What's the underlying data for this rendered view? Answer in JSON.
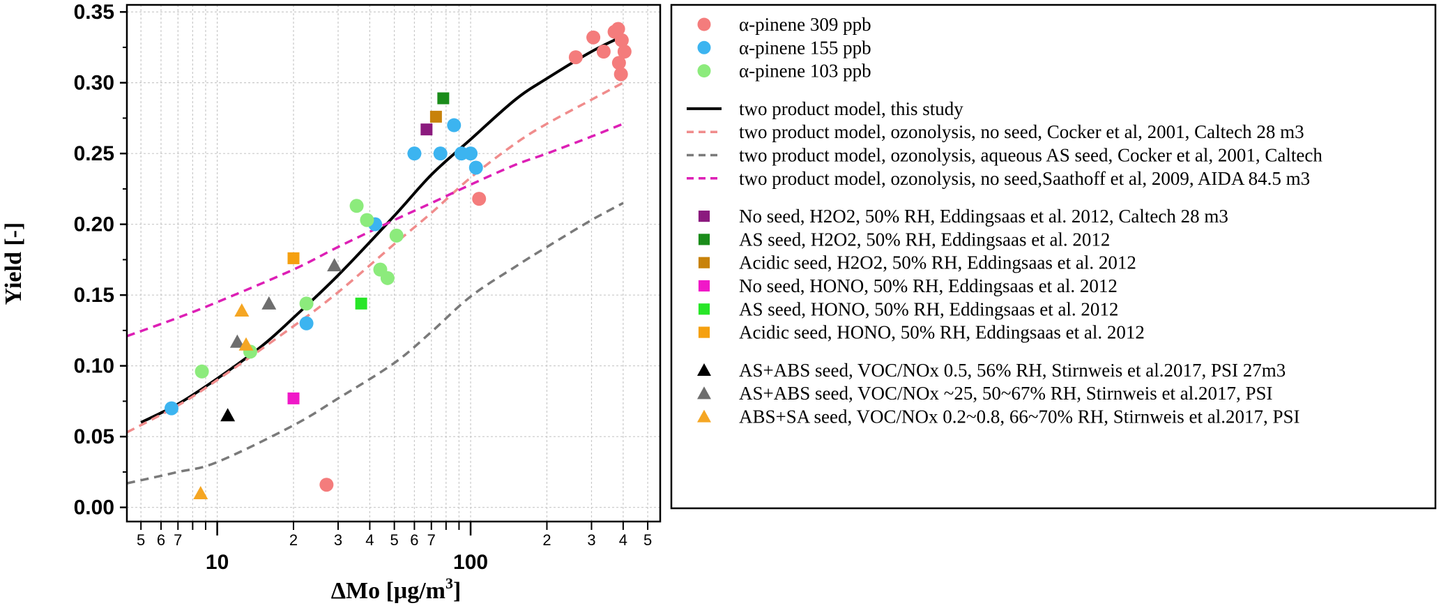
{
  "chart_data": {
    "type": "scatter",
    "x_scale": "log",
    "xlabel": "ΔMo [μg/m",
    "xlabel_superscript": "3",
    "xlabel_close": "]",
    "ylabel": "Yield [-]",
    "xlim": [
      4.4,
      560
    ],
    "ylim": [
      -0.01,
      0.355
    ],
    "grid": true,
    "legend_position": "right",
    "y_ticks": [
      "0.00",
      "0.05",
      "0.10",
      "0.15",
      "0.20",
      "0.25",
      "0.30",
      "0.35"
    ],
    "y_tick_values": [
      0.0,
      0.05,
      0.1,
      0.15,
      0.2,
      0.25,
      0.3,
      0.35
    ],
    "x_major_ticks": [
      {
        "value": 10,
        "label": "10"
      },
      {
        "value": 100,
        "label": "100"
      }
    ],
    "x_minor_ticks": [
      {
        "value": 5,
        "label": "5"
      },
      {
        "value": 6,
        "label": "6"
      },
      {
        "value": 7,
        "label": "7"
      },
      {
        "value": 20,
        "label": "2"
      },
      {
        "value": 30,
        "label": "3"
      },
      {
        "value": 40,
        "label": "4"
      },
      {
        "value": 50,
        "label": "5"
      },
      {
        "value": 60,
        "label": "6"
      },
      {
        "value": 70,
        "label": "7"
      },
      {
        "value": 200,
        "label": "2"
      },
      {
        "value": 300,
        "label": "3"
      },
      {
        "value": 400,
        "label": "4"
      },
      {
        "value": 500,
        "label": "5"
      }
    ],
    "scatter_series": [
      {
        "name": "α-pinene 309 ppb",
        "marker": "circle",
        "color": "#f47c7c",
        "points": [
          [
            108,
            0.218
          ],
          [
            27,
            0.016
          ],
          [
            260,
            0.318
          ],
          [
            305,
            0.332
          ],
          [
            335,
            0.322
          ],
          [
            370,
            0.336
          ],
          [
            382,
            0.338
          ],
          [
            395,
            0.33
          ],
          [
            405,
            0.322
          ],
          [
            385,
            0.314
          ],
          [
            392,
            0.306
          ]
        ]
      },
      {
        "name": "α-pinene 155 ppb",
        "marker": "circle",
        "color": "#3cb4f0",
        "points": [
          [
            6.6,
            0.07
          ],
          [
            22.5,
            0.13
          ],
          [
            42,
            0.2
          ],
          [
            60,
            0.25
          ],
          [
            76,
            0.25
          ],
          [
            86,
            0.27
          ],
          [
            92,
            0.25
          ],
          [
            100,
            0.25
          ],
          [
            105,
            0.24
          ]
        ]
      },
      {
        "name": "α-pinene 103 ppb",
        "marker": "circle",
        "color": "#8ceb7c",
        "points": [
          [
            8.7,
            0.096
          ],
          [
            13.5,
            0.11
          ],
          [
            22.5,
            0.144
          ],
          [
            35.5,
            0.213
          ],
          [
            39,
            0.203
          ],
          [
            44,
            0.168
          ],
          [
            47,
            0.162
          ],
          [
            51,
            0.192
          ]
        ]
      },
      {
        "name": "No seed, H2O2, 50% RH, Eddingsaas et al. 2012, Caltech 28 m3",
        "marker": "square",
        "color": "#8b1a7e",
        "points": [
          [
            67,
            0.267
          ]
        ]
      },
      {
        "name": "AS seed, H2O2, 50% RH,  Eddingsaas et al. 2012",
        "marker": "square",
        "color": "#1a8c1a",
        "points": [
          [
            78,
            0.289
          ]
        ]
      },
      {
        "name": "Acidic seed, H2O2, 50% RH,  Eddingsaas et al. 2012",
        "marker": "square",
        "color": "#c8820a",
        "points": [
          [
            73,
            0.276
          ]
        ]
      },
      {
        "name": "No seed, HONO, 50% RH,  Eddingsaas et al. 2012",
        "marker": "square",
        "color": "#f018c8",
        "points": [
          [
            20,
            0.077
          ]
        ]
      },
      {
        "name": "AS seed, HONO, 50% RH,  Eddingsaas et al. 2012",
        "marker": "square",
        "color": "#28e628",
        "points": [
          [
            37,
            0.144
          ]
        ]
      },
      {
        "name": "Acidic seed, HONO,  50% RH, Eddingsaas et al. 2012",
        "marker": "square",
        "color": "#f5a010",
        "points": [
          [
            20,
            0.176
          ]
        ]
      },
      {
        "name": "AS+ABS seed, VOC/NOx 0.5, 56% RH, Stirnweis et al.2017, PSI 27m3",
        "marker": "triangle",
        "color": "#000000",
        "points": [
          [
            11,
            0.065
          ]
        ]
      },
      {
        "name": " AS+ABS seed, VOC/NOx ~25, 50~67% RH, Stirnweis et al.2017, PSI",
        "marker": "triangle",
        "color": "#6e6e6e",
        "points": [
          [
            12,
            0.117
          ],
          [
            16,
            0.144
          ],
          [
            29,
            0.171
          ]
        ]
      },
      {
        "name": "ABS+SA seed, VOC/NOx 0.2~0.8, 66~70% RH, Stirnweis et al.2017, PSI",
        "marker": "triangle",
        "color": "#f5a623",
        "points": [
          [
            8.6,
            0.01
          ],
          [
            12.5,
            0.139
          ],
          [
            13,
            0.115
          ]
        ]
      }
    ],
    "line_series": [
      {
        "name": "two product model, this study",
        "color": "#000000",
        "dash": "solid",
        "points": [
          [
            5,
            0.06
          ],
          [
            7,
            0.073
          ],
          [
            10,
            0.091
          ],
          [
            15,
            0.114
          ],
          [
            20,
            0.134
          ],
          [
            30,
            0.164
          ],
          [
            50,
            0.206
          ],
          [
            70,
            0.235
          ],
          [
            100,
            0.26
          ],
          [
            150,
            0.288
          ],
          [
            200,
            0.303
          ],
          [
            300,
            0.322
          ],
          [
            400,
            0.333
          ]
        ]
      },
      {
        "name": " two product model, ozonolysis, no seed, Cocker et al, 2001, Caltech 28 m3",
        "color": "#f08c8c",
        "dash": "dashed",
        "points": [
          [
            4.4,
            0.053
          ],
          [
            7,
            0.072
          ],
          [
            10,
            0.09
          ],
          [
            20,
            0.128
          ],
          [
            30,
            0.152
          ],
          [
            50,
            0.186
          ],
          [
            70,
            0.208
          ],
          [
            100,
            0.233
          ],
          [
            150,
            0.257
          ],
          [
            200,
            0.271
          ],
          [
            300,
            0.288
          ],
          [
            400,
            0.3
          ]
        ]
      },
      {
        "name": "two product model, ozonolysis, aqueous AS seed, Cocker et al, 2001, Caltech",
        "color": "#7a7a7a",
        "dash": "dashed",
        "points": [
          [
            4.4,
            0.017
          ],
          [
            7,
            0.025
          ],
          [
            10,
            0.032
          ],
          [
            20,
            0.058
          ],
          [
            30,
            0.077
          ],
          [
            50,
            0.102
          ],
          [
            70,
            0.124
          ],
          [
            100,
            0.149
          ],
          [
            150,
            0.17
          ],
          [
            200,
            0.184
          ],
          [
            300,
            0.203
          ],
          [
            400,
            0.215
          ]
        ]
      },
      {
        "name": "two product model, ozonolysis, no seed,Saathoff et al, 2009, AIDA 84.5 m3",
        "color": "#dd1fb5",
        "dash": "dashed",
        "points": [
          [
            4.4,
            0.121
          ],
          [
            7,
            0.134
          ],
          [
            10,
            0.145
          ],
          [
            20,
            0.168
          ],
          [
            30,
            0.184
          ],
          [
            50,
            0.203
          ],
          [
            70,
            0.215
          ],
          [
            100,
            0.228
          ],
          [
            150,
            0.242
          ],
          [
            200,
            0.25
          ],
          [
            300,
            0.262
          ],
          [
            400,
            0.271
          ]
        ]
      }
    ],
    "legend_groups": [
      [
        "α-pinene 309 ppb",
        "α-pinene 155 ppb",
        "α-pinene 103 ppb"
      ],
      [
        "two product model, this study",
        " two product model, ozonolysis, no seed, Cocker et al, 2001, Caltech 28 m3",
        "two product model, ozonolysis, aqueous AS seed, Cocker et al, 2001, Caltech",
        "two product model, ozonolysis, no seed,Saathoff et al, 2009, AIDA 84.5 m3"
      ],
      [
        "No seed, H2O2, 50% RH, Eddingsaas et al. 2012, Caltech 28 m3",
        "AS seed, H2O2, 50% RH,  Eddingsaas et al. 2012",
        "Acidic seed, H2O2, 50% RH,  Eddingsaas et al. 2012",
        "No seed, HONO, 50% RH,  Eddingsaas et al. 2012",
        "AS seed, HONO, 50% RH,  Eddingsaas et al. 2012",
        "Acidic seed, HONO,  50% RH, Eddingsaas et al. 2012"
      ],
      [
        "AS+ABS seed, VOC/NOx 0.5, 56% RH, Stirnweis et al.2017, PSI 27m3",
        " AS+ABS seed, VOC/NOx ~25, 50~67% RH, Stirnweis et al.2017, PSI",
        "ABS+SA seed, VOC/NOx 0.2~0.8, 66~70% RH, Stirnweis et al.2017, PSI"
      ]
    ]
  }
}
